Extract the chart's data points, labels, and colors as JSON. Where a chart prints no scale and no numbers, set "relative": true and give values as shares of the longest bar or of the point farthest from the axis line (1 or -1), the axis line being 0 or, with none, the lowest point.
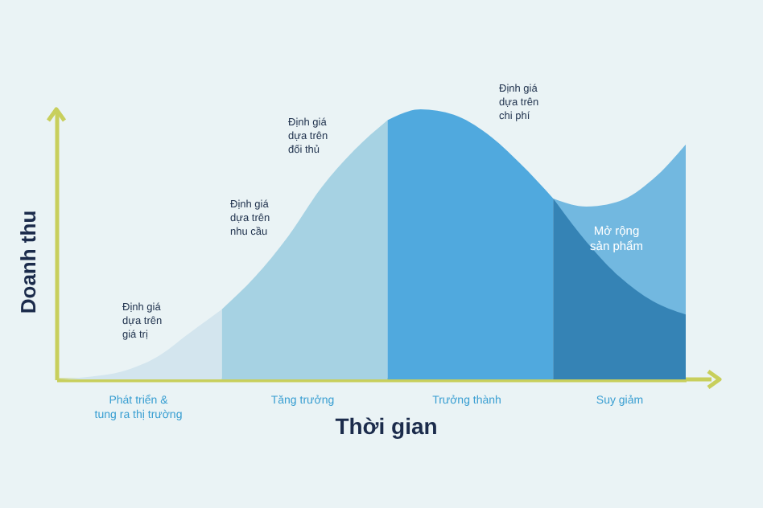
{
  "chart_data": {
    "type": "area",
    "relative": true,
    "xlabel": "Thời gian",
    "ylabel": "Doanh thu",
    "grid": false,
    "categories": [
      null,
      null,
      null,
      null,
      null,
      null,
      null,
      null,
      null,
      null,
      null,
      null,
      null,
      null,
      null,
      null,
      null,
      null,
      null,
      null
    ],
    "series": [
      {
        "color": "#d3e5ee",
        "values": [
          0,
          0.01,
          0.03,
          0.08,
          0.17,
          0.26,
          null,
          null,
          null,
          null,
          null,
          null,
          null,
          null,
          null,
          null,
          null,
          null,
          null,
          null
        ]
      },
      {
        "color": "#a6d2e3",
        "values": [
          null,
          null,
          null,
          null,
          null,
          0.26,
          0.38,
          0.53,
          0.71,
          0.85,
          0.96,
          null,
          null,
          null,
          null,
          null,
          null,
          null,
          null,
          null
        ]
      },
      {
        "color": "#50a9de",
        "values": [
          null,
          null,
          null,
          null,
          null,
          null,
          null,
          null,
          null,
          null,
          0.96,
          1,
          0.98,
          0.91,
          0.8,
          0.67,
          null,
          null,
          null,
          null
        ]
      },
      {
        "color": "#72b8e0",
        "values": [
          null,
          null,
          null,
          null,
          null,
          null,
          null,
          null,
          null,
          null,
          null,
          null,
          null,
          null,
          null,
          0.67,
          0.64,
          0.66,
          0.74,
          0.87
        ]
      },
      {
        "color": "#3583b5",
        "values": [
          null,
          null,
          null,
          null,
          null,
          null,
          null,
          null,
          null,
          null,
          null,
          null,
          null,
          null,
          null,
          0.67,
          0.51,
          0.38,
          0.29,
          0.24
        ]
      }
    ],
    "annotations": [
      "Định giá\ndựa trên\ngiá trị",
      "Định giá\ndựa trên\nnhu cầu",
      "Định giá\ndựa trên\nđối thủ",
      "Định giá\ndựa trên\nchi phí",
      "Mở rộng\nsản phẩm",
      "Phát triển &\ntung ra thị trường",
      "Tăng trưởng",
      "Trưởng thành",
      "Suy giảm"
    ]
  }
}
